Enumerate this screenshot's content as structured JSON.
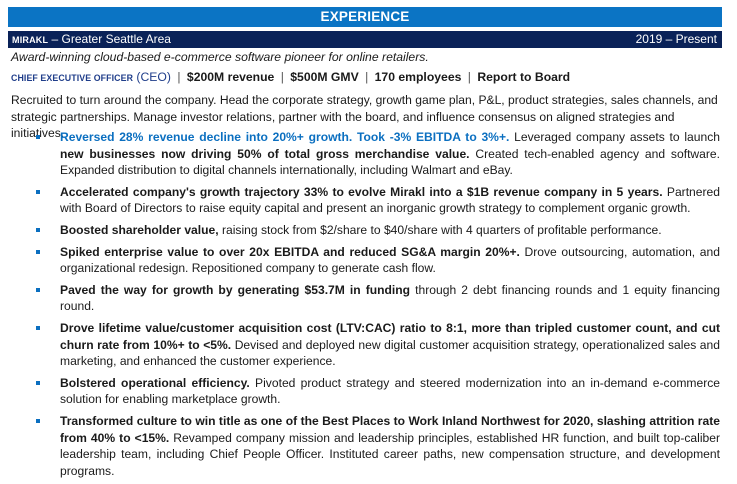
{
  "section": {
    "title": "EXPERIENCE"
  },
  "job": {
    "company": "MIRAKL",
    "location_sep": " – ",
    "location": "Greater Seattle Area",
    "dates": "2019 – Present",
    "tagline": "Award-winning cloud-based e-commerce software pioneer for online retailers.",
    "role_title": "CHIEF EXECUTIVE OFFICER",
    "role_abbr": " (CEO)",
    "stats": [
      "$200M revenue",
      "$500M GMV",
      "170 employees",
      "Report to Board"
    ],
    "separator": "|",
    "summary": "Recruited to turn around the company. Head the corporate strategy, growth game plan, P&L, product strategies, sales channels, and strategic partnerships. Manage investor relations, partner with the board, and influence consensus on aligned strategies and initiatives."
  },
  "colors": {
    "section_bar": "#0b74c4",
    "company_bar": "#0a2258",
    "accent_blue": "#0b6fc0",
    "role_navy": "#1f3d8a"
  },
  "bullets": [
    {
      "blue": "Reversed 28% revenue decline into 20%+ growth. Took -3% EBITDA to 3%+.",
      "text1": " Leveraged company assets to launch ",
      "bold2": "new businesses now driving 50% of total gross merchandise value.",
      "text2": " Created tech-enabled agency and software. Expanded distribution to digital channels internationally, including Walmart and eBay."
    },
    {
      "bold": "Accelerated company's growth trajectory 33% to evolve Mirakl into a $1B revenue company in 5 years.",
      "text": " Partnered with Board of Directors to raise equity capital and present an inorganic growth strategy to complement organic growth."
    },
    {
      "bold": "Boosted shareholder value,",
      "text": " raising stock from $2/share to $40/share with 4 quarters of profitable performance."
    },
    {
      "bold": "Spiked enterprise value to over 20x EBITDA and reduced SG&A margin 20%+.",
      "text": " Drove outsourcing, automation, and organizational redesign. Repositioned company to generate cash flow."
    },
    {
      "bold": "Paved the way for growth by generating $53.7M in funding",
      "text": " through 2 debt financing rounds and 1 equity financing round."
    },
    {
      "bold": "Drove lifetime value/customer acquisition cost (LTV:CAC) ratio to 8:1, more than tripled customer count, and cut churn rate from 10%+ to <5%.",
      "text": " Devised and deployed new digital customer acquisition strategy, operationalized sales and marketing, and enhanced the customer experience."
    },
    {
      "bold": "Bolstered operational efficiency.",
      "text": " Pivoted product strategy and steered modernization into an in-demand e-commerce solution for enabling marketplace growth."
    },
    {
      "bold": "Transformed culture to win title as one of the Best Places to Work Inland Northwest for 2020, slashing attrition rate from 40% to <15%.",
      "text": " Revamped company mission and leadership principles, established HR function, and built top-caliber leadership team, including Chief People Officer. Instituted career paths, new compensation structure, and development programs."
    }
  ]
}
